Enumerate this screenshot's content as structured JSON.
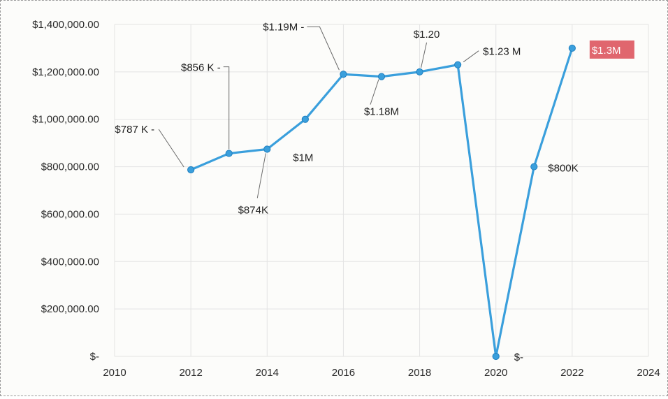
{
  "chart_data": {
    "type": "line",
    "title": "",
    "xlabel": "",
    "ylabel": "",
    "xlim": [
      2010,
      2024
    ],
    "ylim": [
      0,
      1400000
    ],
    "grid": true,
    "legend": "none",
    "x_ticks": [
      "2010",
      "2012",
      "2014",
      "2016",
      "2018",
      "2020",
      "2022",
      "2024"
    ],
    "y_ticks": [
      "$-",
      "$200,000.00",
      "$400,000.00",
      "$600,000.00",
      "$800,000.00",
      "$1,000,000.00",
      "$1,200,000.00",
      "$1,400,000.00"
    ],
    "series": [
      {
        "color": "#3a9fdc",
        "points": [
          {
            "x": 2012,
            "y": 787000,
            "label": "$787 K -"
          },
          {
            "x": 2013,
            "y": 856000,
            "label": "$856 K -"
          },
          {
            "x": 2014,
            "y": 874000,
            "label": "$874K"
          },
          {
            "x": 2015,
            "y": 1000000,
            "label": "$1M"
          },
          {
            "x": 2016,
            "y": 1190000,
            "label": "$1.19M -"
          },
          {
            "x": 2017,
            "y": 1180000,
            "label": "$1.18M"
          },
          {
            "x": 2018,
            "y": 1200000,
            "label": "$1.20"
          },
          {
            "x": 2019,
            "y": 1230000,
            "label": "$1.23 M"
          },
          {
            "x": 2020,
            "y": 0,
            "label": "$-"
          },
          {
            "x": 2021,
            "y": 800000,
            "label": "$800K"
          },
          {
            "x": 2022,
            "y": 1300000,
            "label": "$1.3M"
          }
        ]
      }
    ],
    "highlight_color": "#e0666e"
  }
}
